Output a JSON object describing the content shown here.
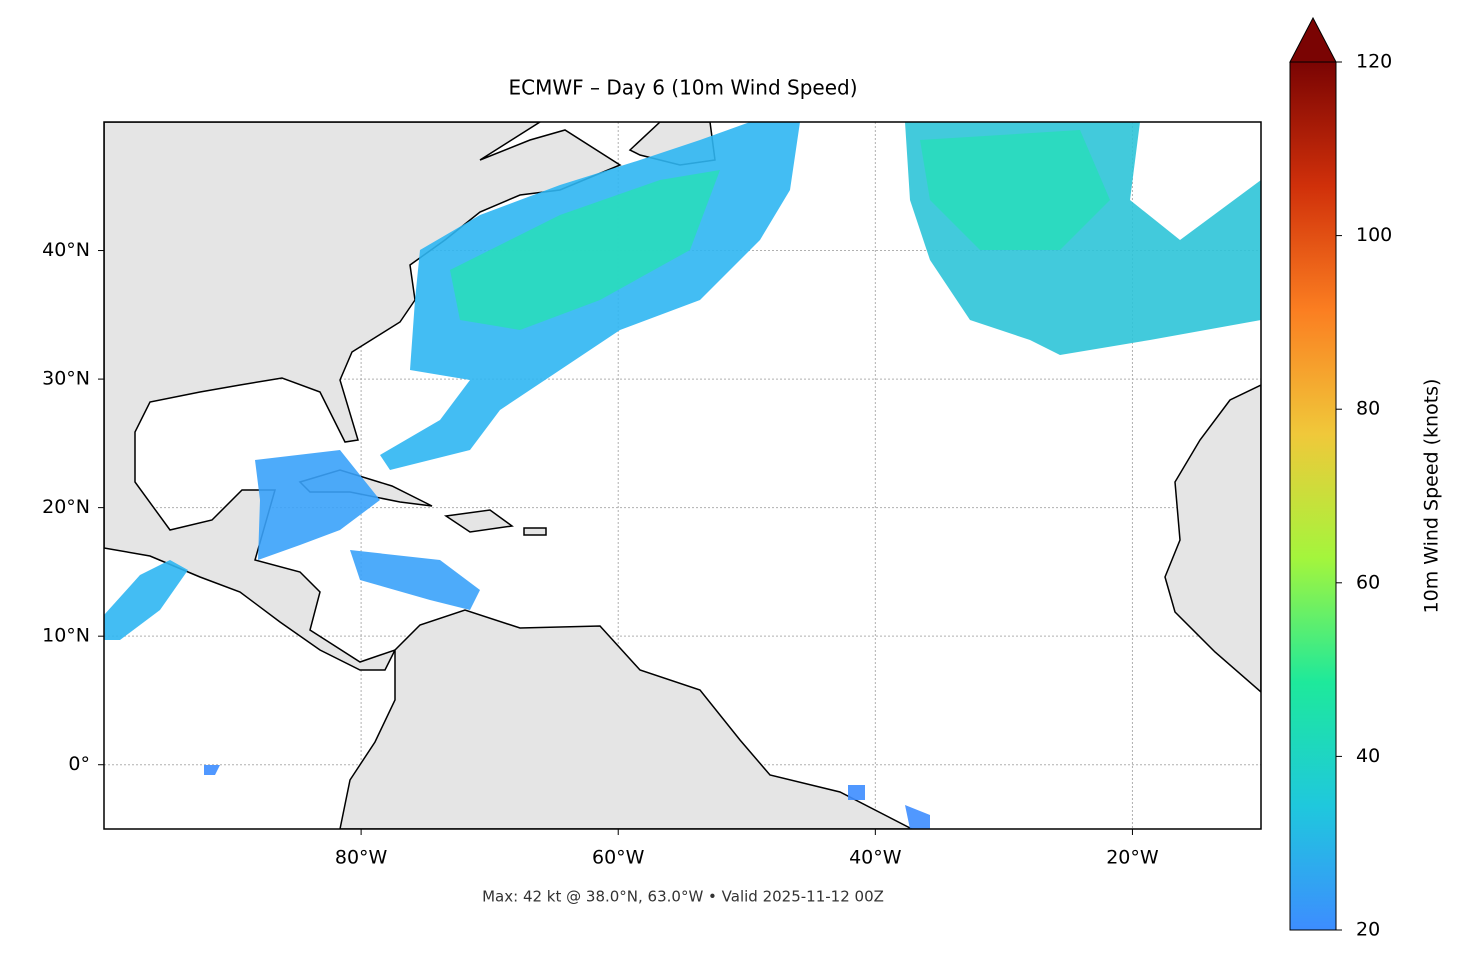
{
  "chart_data": {
    "type": "map",
    "title": "ECMWF – Day 6 (10m Wind Speed)",
    "footer": "Max: 42 kt @ 38.0°N, 63.0°W • Valid 2025-11-12 00Z",
    "xlim": [
      -100,
      -10
    ],
    "ylim": [
      -5,
      50
    ],
    "xticks": [
      {
        "value": -80,
        "label": "80°W"
      },
      {
        "value": -60,
        "label": "60°W"
      },
      {
        "value": -40,
        "label": "40°W"
      },
      {
        "value": -20,
        "label": "20°W"
      }
    ],
    "yticks": [
      {
        "value": 0,
        "label": "0°"
      },
      {
        "value": 10,
        "label": "10°N"
      },
      {
        "value": 20,
        "label": "20°N"
      },
      {
        "value": 30,
        "label": "30°N"
      },
      {
        "value": 40,
        "label": "40°N"
      }
    ],
    "grid": true,
    "colorbar": {
      "label": "10m Wind Speed (knots)",
      "lim": [
        20,
        120
      ],
      "ticks": [
        20,
        40,
        60,
        80,
        100,
        120
      ],
      "colors": [
        "#3d8dff",
        "#1fc8dd",
        "#1ee99b",
        "#a4f53c",
        "#f0c83a",
        "#fb7e21",
        "#d0300a",
        "#7a0403"
      ],
      "extend": "max"
    }
  }
}
